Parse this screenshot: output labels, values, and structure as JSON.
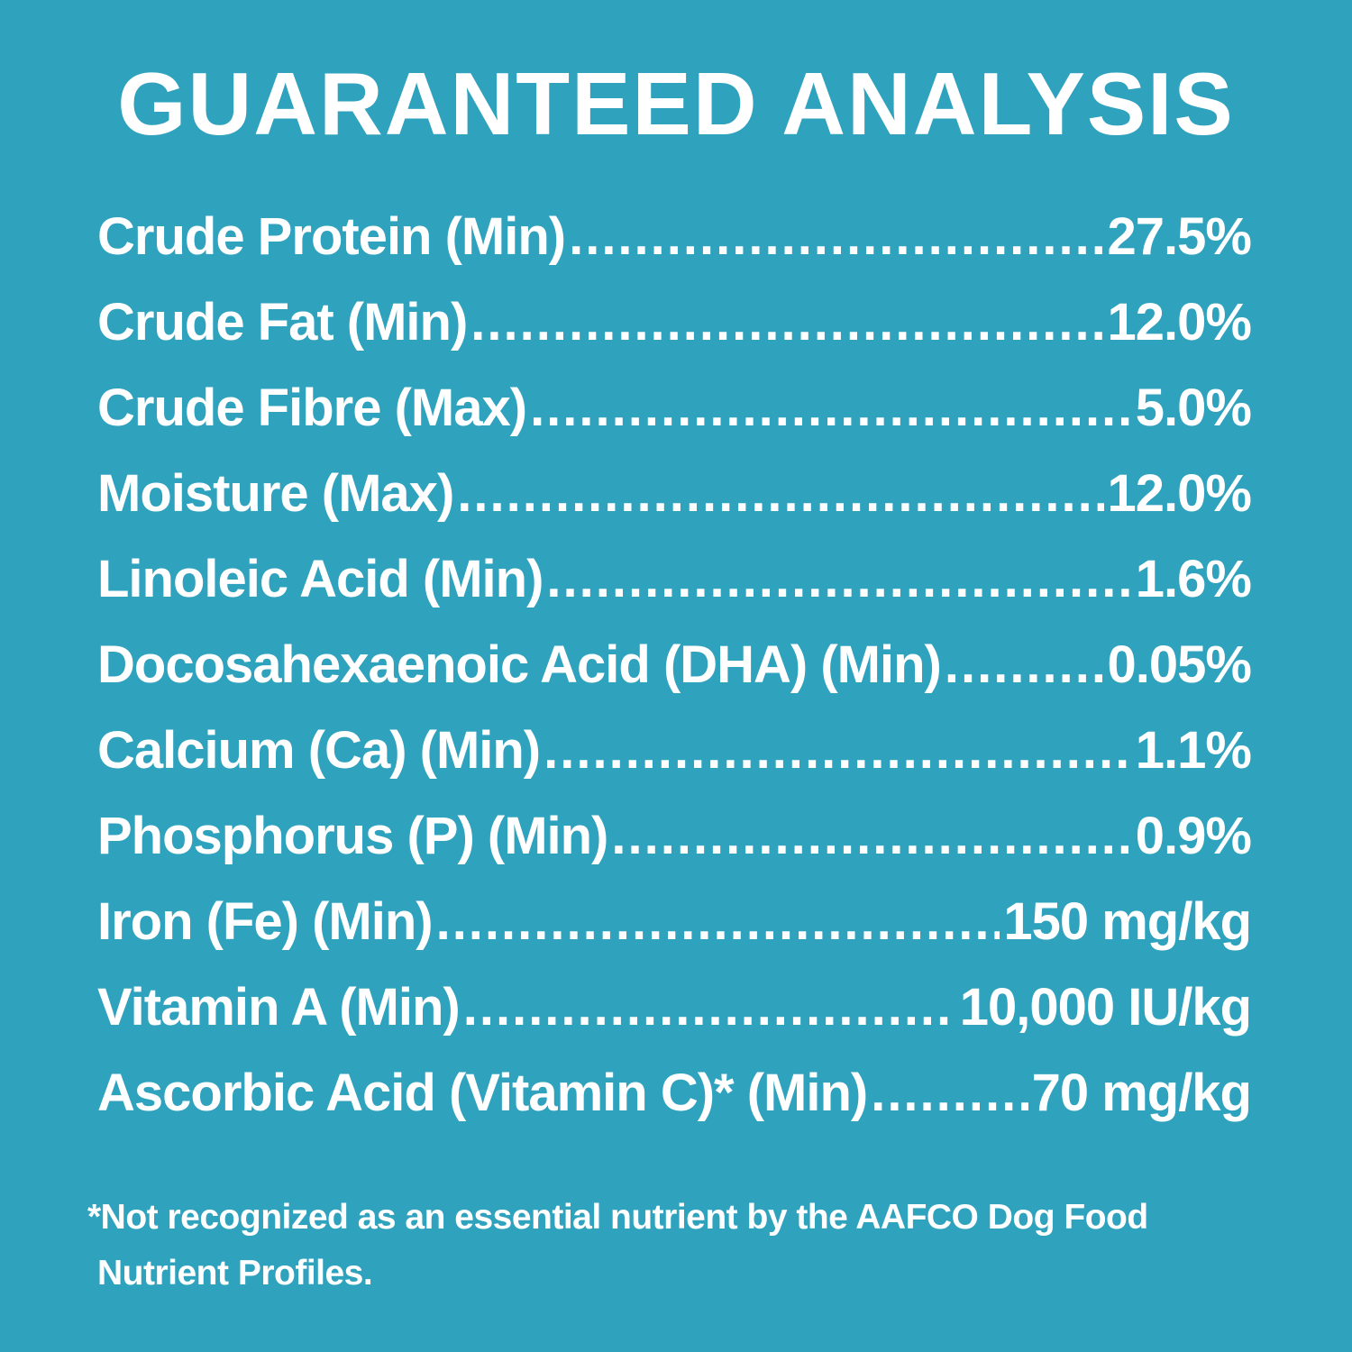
{
  "title": "GUARANTEED ANALYSIS",
  "rows": [
    {
      "label": "Crude Protein (Min)",
      "value": "27.5%"
    },
    {
      "label": "Crude Fat (Min)",
      "value": "12.0%"
    },
    {
      "label": "Crude Fibre (Max)",
      "value": "5.0%"
    },
    {
      "label": "Moisture (Max)",
      "value": "12.0%"
    },
    {
      "label": "Linoleic Acid (Min)",
      "value": "1.6%"
    },
    {
      "label": "Docosahexaenoic Acid (DHA) (Min)",
      "value": "0.05%"
    },
    {
      "label": "Calcium (Ca) (Min)",
      "value": "1.1%"
    },
    {
      "label": "Phosphorus (P) (Min)",
      "value": "0.9%"
    },
    {
      "label": "Iron (Fe) (Min)",
      "value": "150 mg/kg"
    },
    {
      "label": "Vitamin A (Min)",
      "value": "10,000 IU/kg"
    },
    {
      "label": "Ascorbic Acid (Vitamin C)* (Min)",
      "value": "70 mg/kg"
    }
  ],
  "footnote": [
    "*Not recognized as an essential nutrient by the AAFCO Dog Food",
    "Nutrient Profiles."
  ]
}
